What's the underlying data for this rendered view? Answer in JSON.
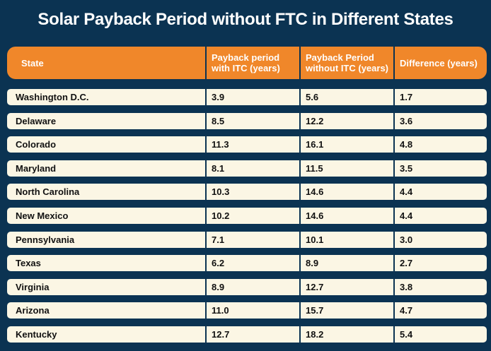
{
  "chart_data": {
    "type": "table",
    "title": "Solar Payback Period without FTC in Different States",
    "columns": [
      "State",
      "Payback period with ITC (years)",
      "Payback Period without ITC (years)",
      "Difference (years)"
    ],
    "rows": [
      [
        "Washington D.C.",
        "3.9",
        "5.6",
        "1.7"
      ],
      [
        "Delaware",
        "8.5",
        "12.2",
        "3.6"
      ],
      [
        "Colorado",
        "11.3",
        "16.1",
        "4.8"
      ],
      [
        "Maryland",
        "8.1",
        "11.5",
        "3.5"
      ],
      [
        "North Carolina",
        "10.3",
        "14.6",
        "4.4"
      ],
      [
        "New Mexico",
        "10.2",
        "14.6",
        "4.4"
      ],
      [
        "Pennsylvania",
        "7.1",
        "10.1",
        "3.0"
      ],
      [
        "Texas",
        "6.2",
        "8.9",
        "2.7"
      ],
      [
        "Virginia",
        "8.9",
        "12.7",
        "3.8"
      ],
      [
        "Arizona",
        "11.0",
        "15.7",
        "4.7"
      ],
      [
        "Kentucky",
        "12.7",
        "18.2",
        "5.4"
      ]
    ],
    "colors": {
      "background": "#0b3352",
      "header": "#f0872a",
      "row": "#fbf6e4"
    }
  }
}
